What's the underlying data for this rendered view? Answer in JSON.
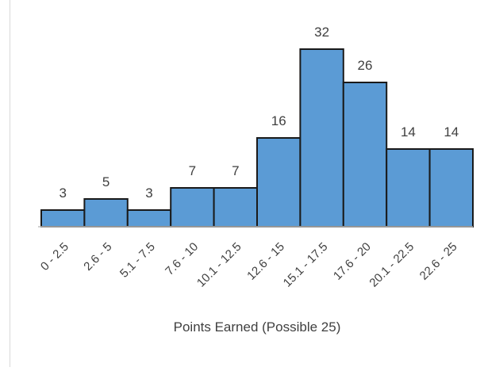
{
  "chart_data": {
    "type": "bar",
    "categories": [
      "0 - 2.5",
      "2.6 - 5",
      "5.1 - 7.5",
      "7.6 - 10",
      "10.1 - 12.5",
      "12.6 - 15",
      "15.1 - 17.5",
      "17.6 - 20",
      "20.1 - 22.5",
      "22.6 - 25"
    ],
    "values": [
      3,
      5,
      3,
      7,
      7,
      16,
      32,
      26,
      14,
      14
    ],
    "title": "",
    "xlabel": "Points Earned (Possible 25)",
    "ylabel": "",
    "ylim": [
      0,
      32
    ],
    "grid": false,
    "legend": "none",
    "bar_color": "#5b9bd5",
    "bar_edge_color": "#1a1a1a"
  }
}
